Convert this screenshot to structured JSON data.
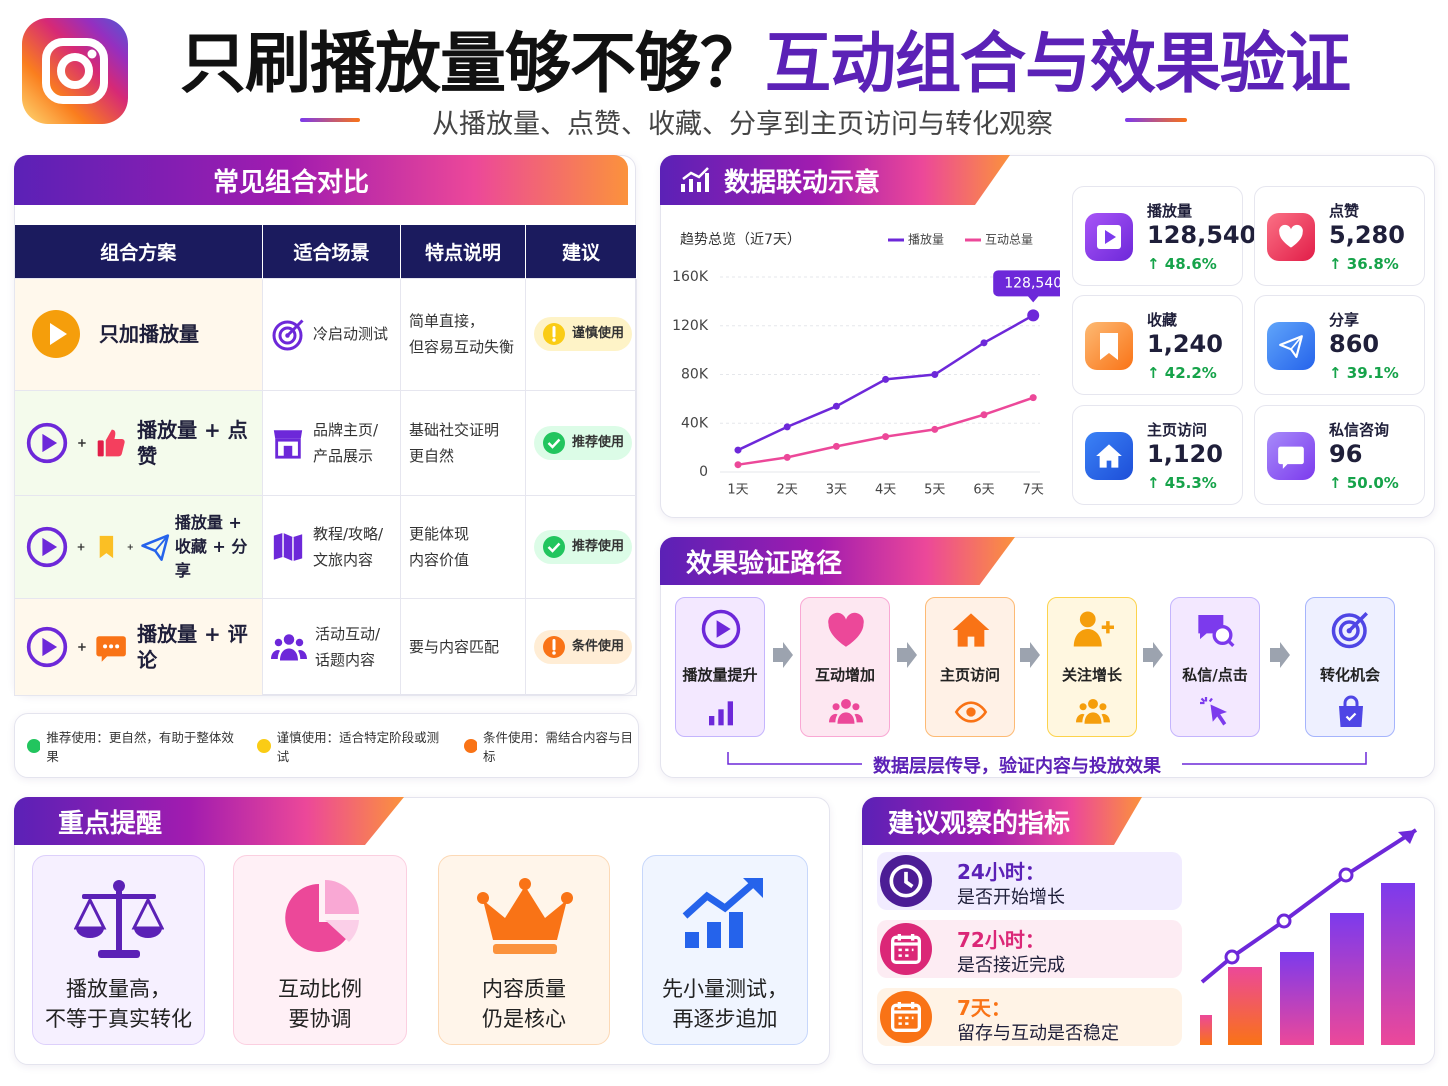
{
  "header": {
    "title_part1": "只刷播放量够不够？",
    "title_part2": "互动组合与效果验证",
    "subtitle": "从播放量、点赞、收藏、分享到主页访问与转化观察"
  },
  "comparison": {
    "title": "常见组合对比",
    "columns": [
      "组合方案",
      "适合场景",
      "特点说明",
      "建议"
    ],
    "rows": [
      {
        "scheme": [
          "只加播放量"
        ],
        "scene": [
          "冷启动测试"
        ],
        "feature": [
          "简单直接，",
          "但容易互动失衡"
        ],
        "advice": "谨慎使用"
      },
      {
        "scheme": [
          "播放量 + 点赞"
        ],
        "scene": [
          "品牌主页/",
          "产品展示"
        ],
        "feature": [
          "基础社交证明",
          "更自然"
        ],
        "advice": "推荐使用"
      },
      {
        "scheme": [
          "播放量 +",
          "收藏 + 分享"
        ],
        "scene": [
          "教程/攻略/",
          "文旅内容"
        ],
        "feature": [
          "更能体现",
          "内容价值"
        ],
        "advice": "推荐使用"
      },
      {
        "scheme": [
          "播放量 + 评论"
        ],
        "scene": [
          "活动互动/",
          "话题内容"
        ],
        "feature": [
          "要与内容匹配"
        ],
        "advice": "条件使用"
      }
    ],
    "legend": [
      "推荐使用：更自然，有助于整体效果",
      "谨慎使用：适合特定阶段或测试",
      "条件使用：需结合内容与目标"
    ]
  },
  "trend": {
    "title": "数据联动示意",
    "subtitle": "趋势总览（近7天）"
  },
  "trend_chart": {
    "type": "line",
    "categories": [
      "1天",
      "2天",
      "3天",
      "4天",
      "5天",
      "6天",
      "7天"
    ],
    "series": [
      {
        "name": "播放量",
        "color": "#6d28d9",
        "values": [
          18000,
          37000,
          54000,
          76000,
          80000,
          106000,
          128540
        ],
        "value_labels": [
          null,
          null,
          null,
          null,
          null,
          null,
          "128,540"
        ]
      },
      {
        "name": "互动总量",
        "color": "#ec4899",
        "values": [
          6000,
          12000,
          21000,
          29000,
          35000,
          47000,
          61000
        ]
      }
    ],
    "ylim": [
      0,
      160000
    ],
    "yticks": [
      0,
      {
        "value": 40000,
        "label": "40K"
      },
      {
        "value": 80000,
        "label": "80K"
      },
      {
        "value": 120000,
        "label": "120K"
      },
      {
        "value": 160000,
        "label": "160K"
      }
    ],
    "grid": true
  },
  "metrics": [
    {
      "label": "播放量",
      "value": "128,540",
      "change": "↑ 48.6%"
    },
    {
      "label": "点赞",
      "value": "5,280",
      "change": "↑ 36.8%"
    },
    {
      "label": "收藏",
      "value": "1,240",
      "change": "↑ 42.2%"
    },
    {
      "label": "分享",
      "value": "860",
      "change": "↑ 39.1%"
    },
    {
      "label": "主页访问",
      "value": "1,120",
      "change": "↑ 45.3%"
    },
    {
      "label": "私信咨询",
      "value": "96",
      "change": "↑ 50.0%"
    }
  ],
  "path": {
    "title": "效果验证路径",
    "steps": [
      "播放量提升",
      "互动增加",
      "主页访问",
      "关注增长",
      "私信/点击",
      "转化机会"
    ],
    "caption": "数据层层传导，验证内容与投放效果"
  },
  "reminders": {
    "title": "重点提醒",
    "cards": [
      [
        "播放量高，",
        "不等于真实转化"
      ],
      [
        "互动比例",
        "要协调"
      ],
      [
        "内容质量",
        "仍是核心"
      ],
      [
        "先小量测试，",
        "再逐步追加"
      ]
    ]
  },
  "indicators": {
    "title": "建议观察的指标",
    "items": [
      {
        "time": "24小时：",
        "desc": "是否开始增长"
      },
      {
        "time": "72小时：",
        "desc": "是否接近完成"
      },
      {
        "time": "7天：",
        "desc": "留存与互动是否稳定"
      }
    ]
  }
}
